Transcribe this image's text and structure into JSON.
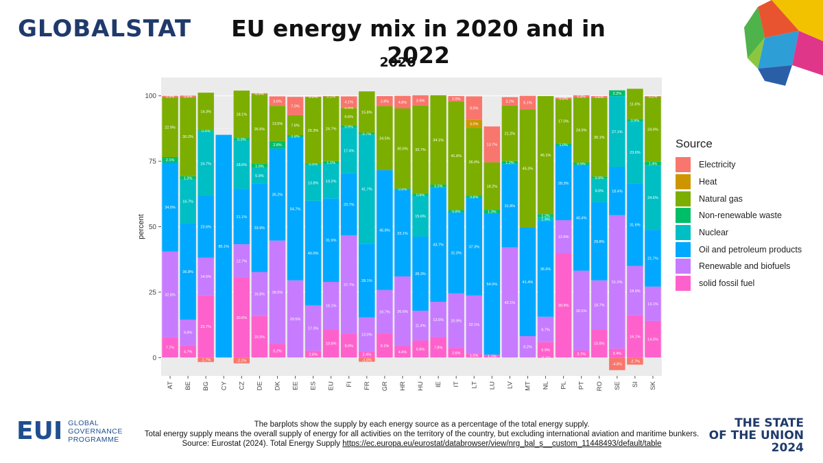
{
  "header": {
    "logo_text": "GLOBALSTAT",
    "title": "EU energy mix in 2020 and in 2022",
    "subtitle": "2020"
  },
  "footer": {
    "line1": "The barplots show the supply by each energy source as a percentage of the total energy supply.",
    "line2": "Total energy supply means the overall supply of energy for all activities on the territory of the country, but excluding international aviation and maritime bunkers.",
    "source_label": "Source: Eurostat (2024). Total Energy Supply",
    "source_link": "https://ec.europa.eu/eurostat/databrowser/view/nrg_bal_s__custom_11448493/default/table"
  },
  "branding": {
    "eui_mark": "EUI",
    "eui_line1": "GLOBAL",
    "eui_line2": "GOVERNANCE",
    "eui_line3": "PROGRAMME",
    "sotu_line1": "THE STATE",
    "sotu_line2": "OF THE UNION",
    "sotu_line3": "2024"
  },
  "colors": {
    "Electricity": "#F8766D",
    "Heat": "#CD9600",
    "Natural gas": "#7CAE00",
    "Non-renewable waste": "#00BE67",
    "Nuclear": "#00BFC4",
    "Oil and petroleum products": "#00A9FF",
    "Renewable and biofuels": "#C77CFF",
    "solid fossil fuel": "#FF61CC"
  },
  "chart_data": {
    "type": "bar",
    "stacked": true,
    "title": "2020",
    "xlabel": "",
    "ylabel": "percent",
    "ylim": [
      -7,
      107
    ],
    "yticks": [
      0,
      25,
      50,
      75,
      100
    ],
    "legend_title": "Source",
    "legend_position": "right",
    "categories": [
      "AT",
      "BE",
      "BG",
      "CY",
      "CZ",
      "DE",
      "DK",
      "EE",
      "ES",
      "EU",
      "FI",
      "FR",
      "GR",
      "HR",
      "HU",
      "IE",
      "IT",
      "LT",
      "LU",
      "LV",
      "MT",
      "NL",
      "PL",
      "PT",
      "RO",
      "SE",
      "SI",
      "SK"
    ],
    "series": [
      {
        "name": "solid fossil fuel",
        "values": [
          7.7,
          4.7,
          23.7,
          0.0,
          30.6,
          15.9,
          5.2,
          0.0,
          2.6,
          10.8,
          9.0,
          2.4,
          9.1,
          4.4,
          6.5,
          7.8,
          3.6,
          1.6,
          1.1,
          0.0,
          0.0,
          5.9,
          39.9,
          2.7,
          10.8,
          3.4,
          16.1,
          14.0
        ]
      },
      {
        "name": "Renewable and biofuels",
        "values": [
          32.8,
          9.8,
          14.5,
          0.0,
          12.7,
          16.8,
          39.5,
          29.5,
          17.3,
          18.1,
          37.7,
          13.0,
          16.7,
          26.6,
          11.4,
          13.5,
          20.9,
          22.1,
          0.0,
          42.1,
          8.2,
          9.7,
          12.6,
          30.5,
          18.7,
          51.0,
          18.9,
          13.1
        ]
      },
      {
        "name": "Oil and petroleum products",
        "values": [
          34.0,
          36.8,
          23.6,
          85.1,
          21.1,
          33.9,
          35.2,
          54.7,
          40.0,
          31.9,
          23.7,
          28.1,
          45.8,
          33.1,
          28.3,
          43.7,
          31.0,
          37.3,
          54.0,
          31.8,
          41.4,
          36.6,
          28.3,
          40.4,
          29.8,
          18.4,
          31.6,
          21.7
        ]
      },
      {
        "name": "Nuclear",
        "values": [
          0.0,
          16.7,
          24.7,
          0.0,
          18.6,
          5.9,
          0.0,
          0.0,
          13.8,
          13.2,
          17.4,
          41.7,
          0.0,
          0.0,
          15.6,
          0.0,
          0.0,
          0.0,
          0.0,
          0.0,
          0.0,
          1.4,
          0.0,
          0.0,
          9.0,
          27.1,
          23.6,
          24.6
        ]
      },
      {
        "name": "Non-renewable waste",
        "values": [
          2.1,
          1.3,
          0.4,
          0.0,
          0.9,
          1.5,
          2.8,
          0.8,
          0.5,
          1.1,
          0.9,
          0.7,
          0.0,
          0.5,
          0.8,
          1.1,
          0.8,
          0.8,
          1.3,
          1.2,
          0.0,
          1.2,
          1.0,
          0.9,
          0.9,
          2.2,
          0.9,
          1.4
        ]
      },
      {
        "name": "Natural gas",
        "values": [
          22.9,
          30.2,
          14.3,
          0.0,
          18.1,
          26.6,
          13.5,
          7.6,
          25.3,
          24.7,
          6.6,
          15.8,
          24.5,
          30.6,
          33.7,
          34.1,
          41.6,
          26.0,
          18.2,
          21.2,
          45.3,
          45.1,
          17.0,
          24.9,
          30.1,
          0.0,
          11.6,
          24.9
        ]
      },
      {
        "name": "Heat",
        "values": [
          0.0,
          0.0,
          0.0,
          0.0,
          0.0,
          0.0,
          0.0,
          0.0,
          0.0,
          0.0,
          0.4,
          0.0,
          0.0,
          0.0,
          0.0,
          0.0,
          0.0,
          3.0,
          0.0,
          0.0,
          0.0,
          0.0,
          0.0,
          0.0,
          0.0,
          0.0,
          0.0,
          0.0
        ]
      },
      {
        "name": "Electricity",
        "values": [
          0.5,
          0.6,
          -1.7,
          0.0,
          -2.2,
          0.4,
          3.6,
          7.0,
          0.2,
          0.1,
          4.1,
          -1.6,
          3.8,
          4.8,
          3.9,
          0.0,
          2.0,
          9.0,
          13.7,
          3.2,
          5.1,
          -0.1,
          0.5,
          0.8,
          0.6,
          -4.8,
          -2.7,
          0.2
        ]
      }
    ]
  }
}
